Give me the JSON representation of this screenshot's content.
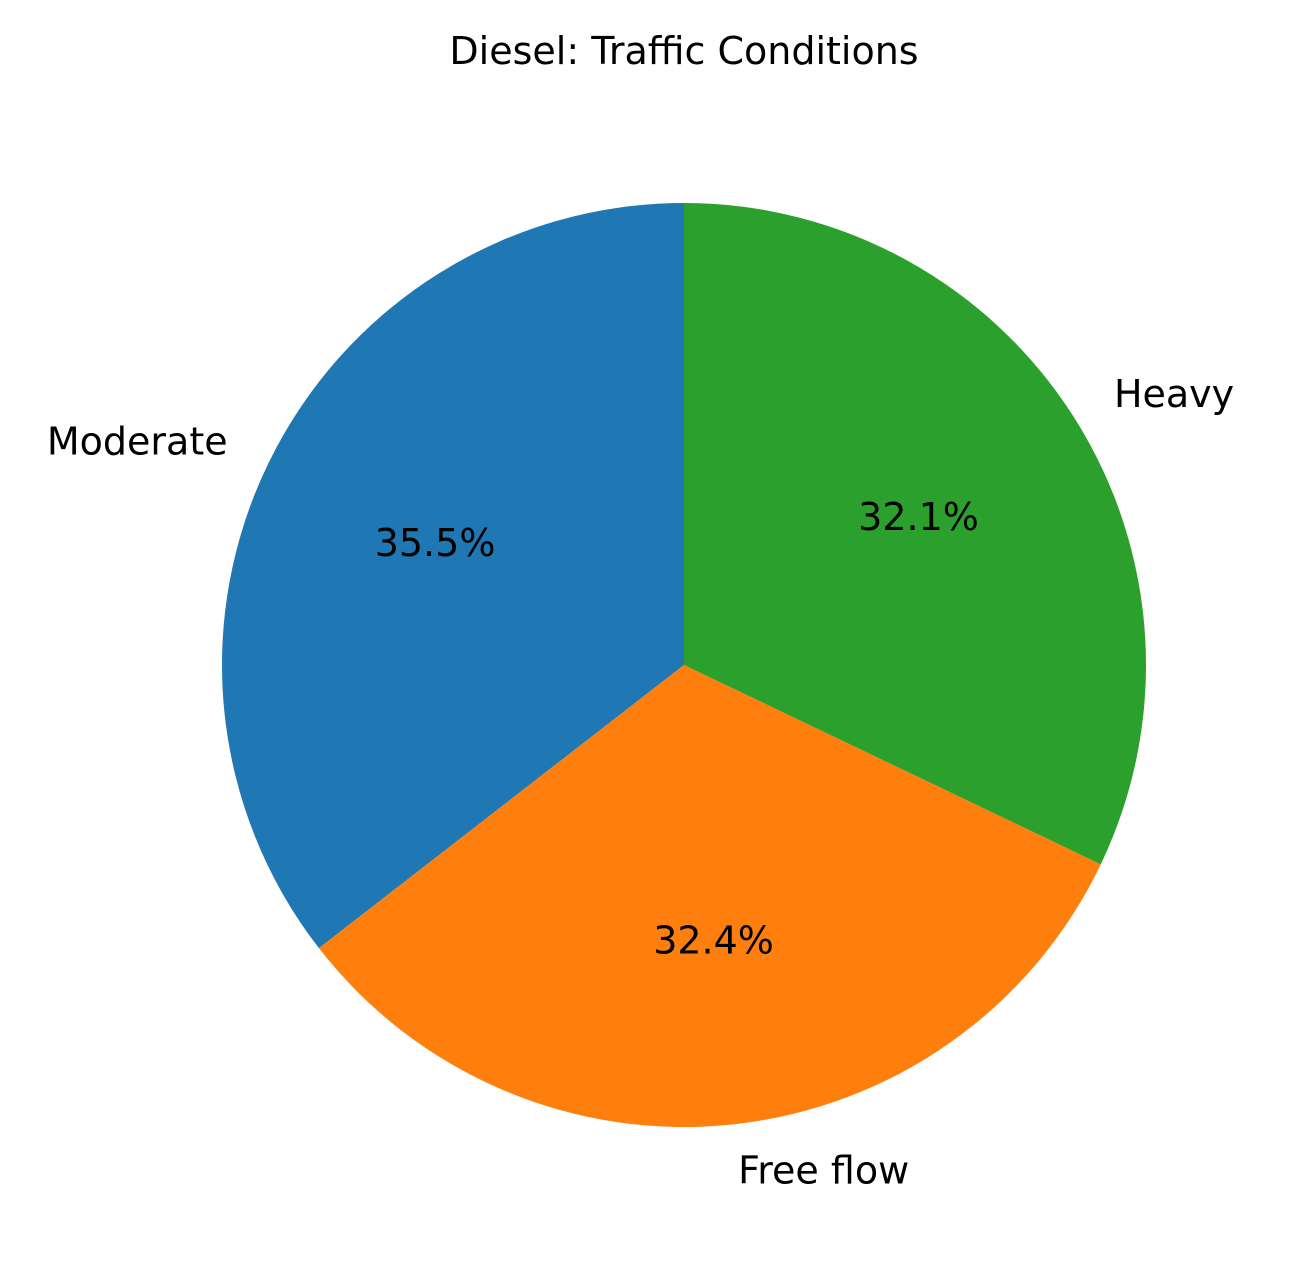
{
  "chart_data": {
    "type": "pie",
    "title": "Diesel: Traffic Conditions",
    "categories": [
      "Moderate",
      "Free flow",
      "Heavy"
    ],
    "values": [
      35.5,
      32.4,
      32.1
    ],
    "value_labels": [
      "35.5%",
      "32.4%",
      "32.1%"
    ],
    "colors": [
      "#1f77b4",
      "#ff7f0e",
      "#2ca02c"
    ],
    "start_angle_deg": 90,
    "direction": "counterclockwise"
  }
}
